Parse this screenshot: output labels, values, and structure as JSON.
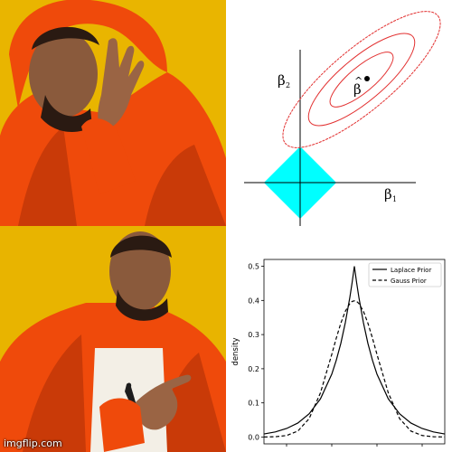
{
  "meme": {
    "watermark": "imgflip.com",
    "jacket_color": "#ef4a0b",
    "background_color": "#e9b500"
  },
  "diagram": {
    "beta1_label": "β",
    "beta1_sub": "1",
    "beta2_label": "β",
    "beta2_sub": "2",
    "beta_hat_label": "β",
    "beta_hat_accent": "^",
    "constraint_color": "#00ffff",
    "contour_color": "#e23030"
  },
  "chart_data": {
    "type": "line",
    "ylabel": "density",
    "xlabel": "",
    "xlim": [
      -4,
      4
    ],
    "ylim": [
      -0.02,
      0.52
    ],
    "yticks": [
      "0.0",
      "0.1",
      "0.2",
      "0.3",
      "0.4",
      "0.5"
    ],
    "ytick_values": [
      0.0,
      0.1,
      0.2,
      0.3,
      0.4,
      0.5
    ],
    "legend_placement": "top-right",
    "series": [
      {
        "name": "Laplace Prior",
        "style": "solid",
        "x": [
          -4.0,
          -3.5,
          -3.0,
          -2.5,
          -2.0,
          -1.5,
          -1.0,
          -0.8,
          -0.6,
          -0.4,
          -0.2,
          -0.1,
          0.0,
          0.1,
          0.2,
          0.4,
          0.6,
          0.8,
          1.0,
          1.5,
          2.0,
          2.5,
          3.0,
          3.5,
          4.0
        ],
        "values": [
          0.009,
          0.015,
          0.025,
          0.041,
          0.068,
          0.112,
          0.184,
          0.225,
          0.274,
          0.335,
          0.409,
          0.452,
          0.5,
          0.452,
          0.409,
          0.335,
          0.274,
          0.225,
          0.184,
          0.112,
          0.068,
          0.041,
          0.025,
          0.015,
          0.009
        ]
      },
      {
        "name": "Gauss Prior",
        "style": "dashed",
        "x": [
          -4.0,
          -3.5,
          -3.0,
          -2.5,
          -2.0,
          -1.5,
          -1.0,
          -0.8,
          -0.6,
          -0.4,
          -0.2,
          -0.1,
          0.0,
          0.1,
          0.2,
          0.4,
          0.6,
          0.8,
          1.0,
          1.5,
          2.0,
          2.5,
          3.0,
          3.5,
          4.0
        ],
        "values": [
          0.0001,
          0.0009,
          0.0044,
          0.0175,
          0.054,
          0.1295,
          0.242,
          0.2897,
          0.3332,
          0.3683,
          0.391,
          0.397,
          0.3989,
          0.397,
          0.391,
          0.3683,
          0.3332,
          0.2897,
          0.242,
          0.1295,
          0.054,
          0.0175,
          0.0044,
          0.0009,
          0.0001
        ]
      }
    ]
  }
}
